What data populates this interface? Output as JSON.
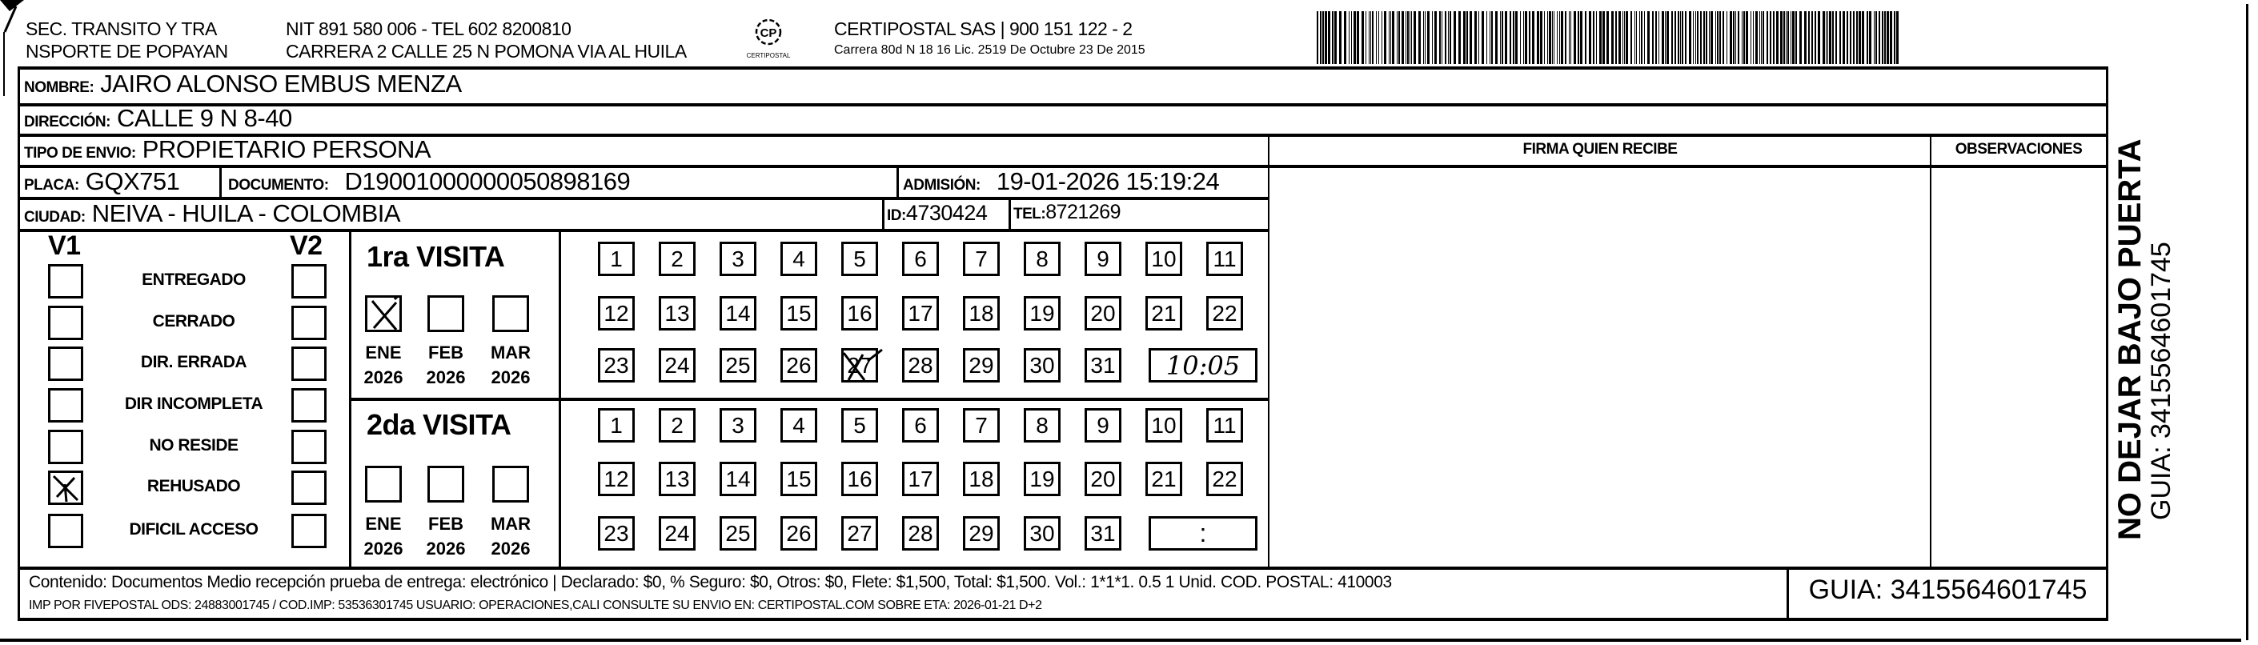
{
  "header": {
    "sender_line1": "SEC. TRANSITO Y TRA",
    "sender_line2": "NSPORTE DE POPAYAN",
    "nit_line": "NIT 891 580 006 - TEL 602 8200810",
    "address_line": "CARRERA 2 CALLE 25 N POMONA VIA AL HUILA",
    "logo_text": "CERTIPOSTAL",
    "company_line": "CERTIPOSTAL SAS | 900 151 122 - 2",
    "company_address": "Carrera 80d N 18 16  Lic. 2519 De Octubre 23 De 2015",
    "barcode_value": "3415564601745"
  },
  "recipient": {
    "nombre_label": "NOMBRE:",
    "nombre": "JAIRO ALONSO EMBUS MENZA",
    "direccion_label": "DIRECCIÓN:",
    "direccion": "CALLE 9 N 8-40",
    "tipo_label": "TIPO DE ENVIO:",
    "tipo": "PROPIETARIO PERSONA",
    "placa_label": "PLACA:",
    "placa": "GQX751",
    "documento_label": "DOCUMENTO:",
    "documento": "D19001000000050898169",
    "admision_label": "ADMISIÓN:",
    "admision": "19-01-2026 15:19:24",
    "ciudad_label": "CIUDAD:",
    "ciudad": "NEIVA - HUILA - COLOMBIA",
    "id_label": "ID:",
    "id": "4730424",
    "tel_label": "TEL:",
    "tel": "8721269"
  },
  "columns": {
    "firma": "FIRMA QUIEN RECIBE",
    "observaciones": "OBSERVACIONES"
  },
  "status": {
    "v1_label": "V1",
    "v2_label": "V2",
    "items": [
      {
        "label": "ENTREGADO",
        "v1": false,
        "v2": false
      },
      {
        "label": "CERRADO",
        "v1": false,
        "v2": false
      },
      {
        "label": "DIR. ERRADA",
        "v1": false,
        "v2": false
      },
      {
        "label": "DIR INCOMPLETA",
        "v1": false,
        "v2": false
      },
      {
        "label": "NO RESIDE",
        "v1": false,
        "v2": false
      },
      {
        "label": "REHUSADO",
        "v1": true,
        "v2": false
      },
      {
        "label": "DIFICIL ACCESO",
        "v1": false,
        "v2": false
      }
    ]
  },
  "visits": [
    {
      "title": "1ra VISITA",
      "months": [
        {
          "name": "ENE",
          "year": "2026",
          "checked": true
        },
        {
          "name": "FEB",
          "year": "2026",
          "checked": false
        },
        {
          "name": "MAR",
          "year": "2026",
          "checked": false
        }
      ],
      "marked_day": 27,
      "time": "10:05"
    },
    {
      "title": "2da VISITA",
      "months": [
        {
          "name": "ENE",
          "year": "2026",
          "checked": false
        },
        {
          "name": "FEB",
          "year": "2026",
          "checked": false
        },
        {
          "name": "MAR",
          "year": "2026",
          "checked": false
        }
      ],
      "marked_day": null,
      "time": ":"
    }
  ],
  "side": {
    "warning": "NO DEJAR BAJO PUERTA",
    "guia": "GUIA: 3415564601745"
  },
  "footer": {
    "contenido": "Contenido: Documentos Medio recepción prueba de entrega: electrónico | Declarado: $0, % Seguro: $0, Otros: $0, Flete: $1,500, Total: $1,500. Vol.: 1*1*1. 0.5  1 Unid. COD. POSTAL: 410003",
    "imp": "IMP POR FIVEPOSTAL ODS: 24883001745 / COD.IMP: 53536301745 USUARIO: OPERACIONES,CALI CONSULTE SU ENVIO EN: CERTIPOSTAL.COM SOBRE ETA: 2026-01-21 D+2",
    "guia": "GUIA: 3415564601745"
  }
}
